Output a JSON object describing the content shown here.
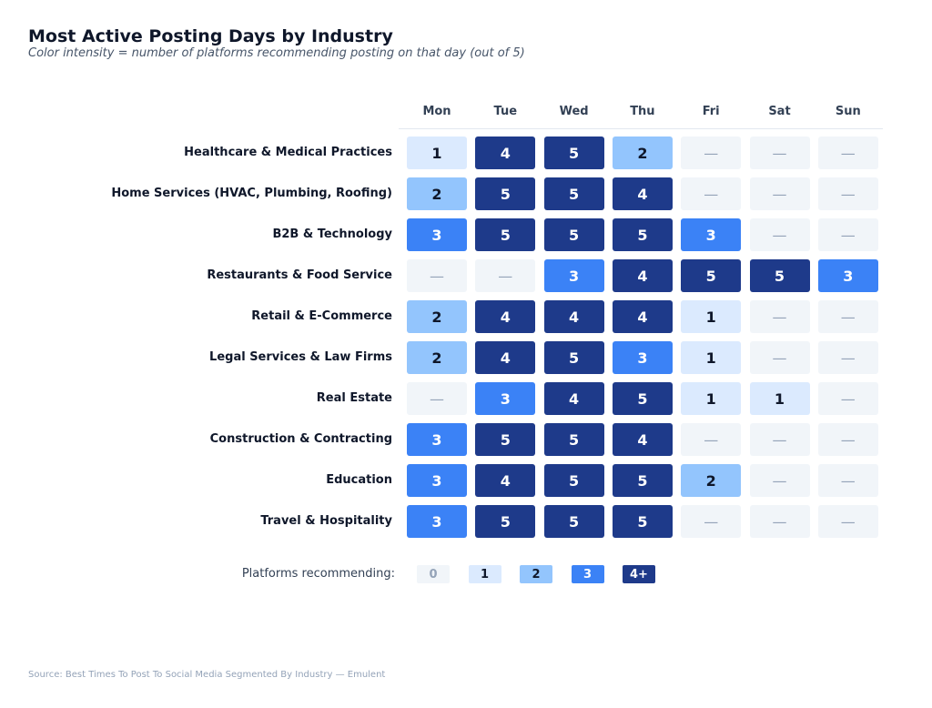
{
  "chart_data": {
    "type": "heatmap",
    "title": "Most Active Posting Days by Industry",
    "subtitle": "Color intensity = number of platforms recommending posting on that day (out of 5)",
    "columns": [
      "Mon",
      "Tue",
      "Wed",
      "Thu",
      "Fri",
      "Sat",
      "Sun"
    ],
    "rows": [
      "Healthcare & Medical Practices",
      "Home Services (HVAC, Plumbing, Roofing)",
      "B2B & Technology",
      "Restaurants & Food Service",
      "Retail & E-Commerce",
      "Legal Services & Law Firms",
      "Real Estate",
      "Construction & Contracting",
      "Education",
      "Travel & Hospitality"
    ],
    "values": [
      [
        1,
        4,
        5,
        2,
        0,
        0,
        0
      ],
      [
        2,
        5,
        5,
        4,
        0,
        0,
        0
      ],
      [
        3,
        5,
        5,
        5,
        3,
        0,
        0
      ],
      [
        0,
        0,
        3,
        4,
        5,
        5,
        3
      ],
      [
        2,
        4,
        4,
        4,
        1,
        0,
        0
      ],
      [
        2,
        4,
        5,
        3,
        1,
        0,
        0
      ],
      [
        0,
        3,
        4,
        5,
        1,
        1,
        0
      ],
      [
        3,
        5,
        5,
        4,
        0,
        0,
        0
      ],
      [
        3,
        4,
        5,
        5,
        2,
        0,
        0
      ],
      [
        3,
        5,
        5,
        5,
        0,
        0,
        0
      ]
    ],
    "zero_symbol": "—",
    "value_range": [
      0,
      5
    ],
    "legend": {
      "label": "Platforms recommending:",
      "entries": [
        "0",
        "1",
        "2",
        "3",
        "4+"
      ]
    },
    "color_scale": {
      "0": {
        "bg": "#f1f5f9",
        "fg": "#94a3b8"
      },
      "1": {
        "bg": "#dbeafe",
        "fg": "#0f172a"
      },
      "2": {
        "bg": "#93c5fd",
        "fg": "#0f172a"
      },
      "3": {
        "bg": "#3b82f6",
        "fg": "#ffffff"
      },
      "4": {
        "bg": "#1e3a8a",
        "fg": "#ffffff"
      }
    }
  },
  "source": "Source: Best Times To Post To Social Media Segmented By Industry — Emulent"
}
